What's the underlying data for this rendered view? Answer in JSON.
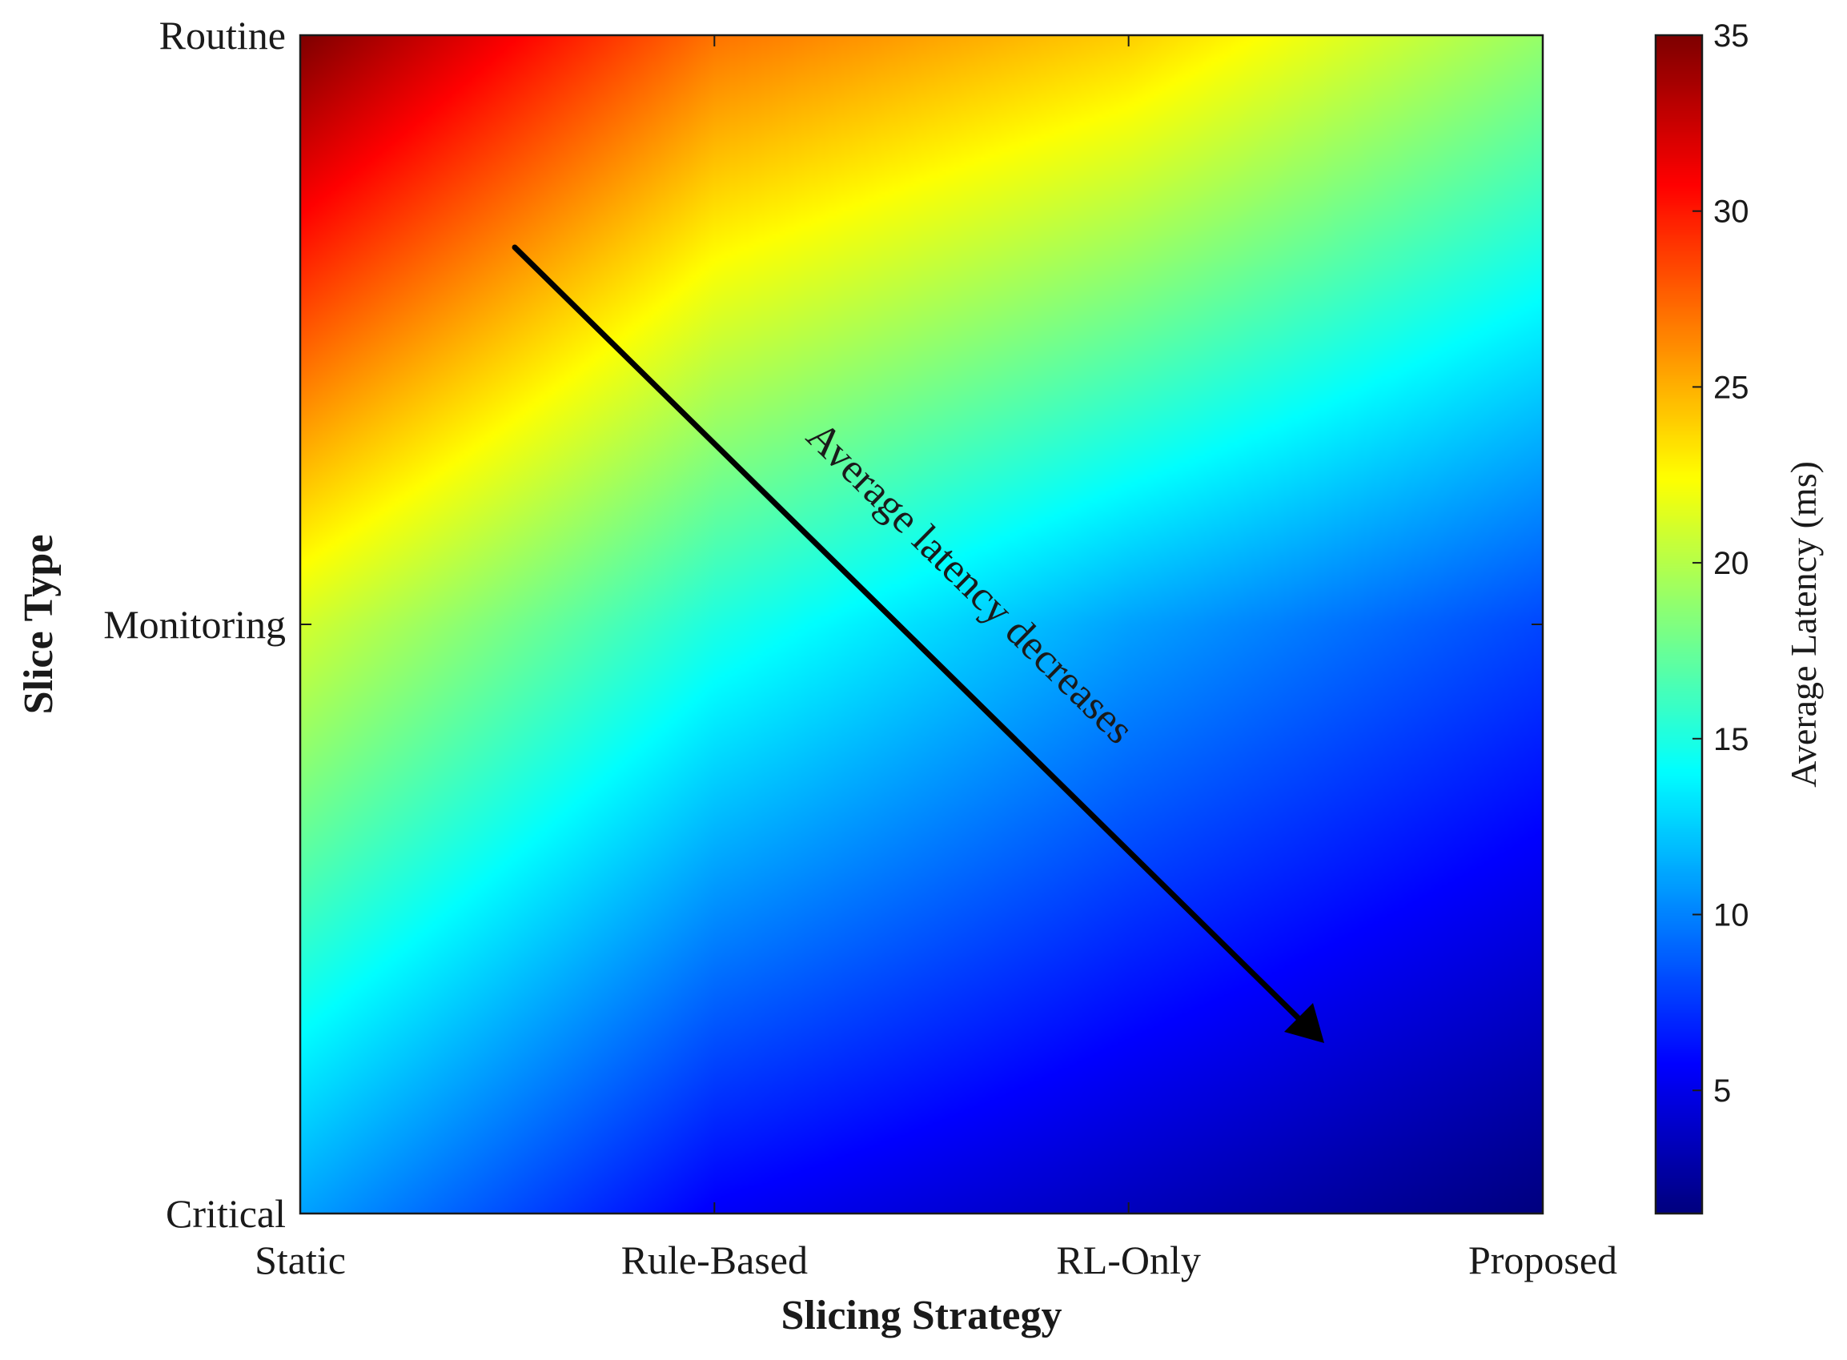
{
  "chart_data": {
    "type": "heatmap",
    "title": "",
    "xlabel": "Slicing Strategy",
    "ylabel": "Slice Type",
    "x_categories": [
      "Static",
      "Rule-Based",
      "RL-Only",
      "Proposed"
    ],
    "y_categories": [
      "Critical",
      "Monitoring",
      "Routine"
    ],
    "values": [
      [
        11,
        5.5,
        3.5,
        1.5
      ],
      [
        21,
        15,
        11,
        8
      ],
      [
        35,
        27,
        24,
        19
      ]
    ],
    "interpolation": "smooth",
    "colormap": "jet",
    "colorbar": {
      "label": "Average Latency (ms)",
      "range": [
        1.5,
        35
      ],
      "ticks": [
        5,
        10,
        15,
        20,
        25,
        30,
        35
      ]
    },
    "annotation": {
      "text": "Average latency decreases",
      "arrow_from": [
        "Rule-Based",
        "Routine"
      ],
      "arrow_to": [
        "Proposed",
        "Critical"
      ]
    }
  }
}
